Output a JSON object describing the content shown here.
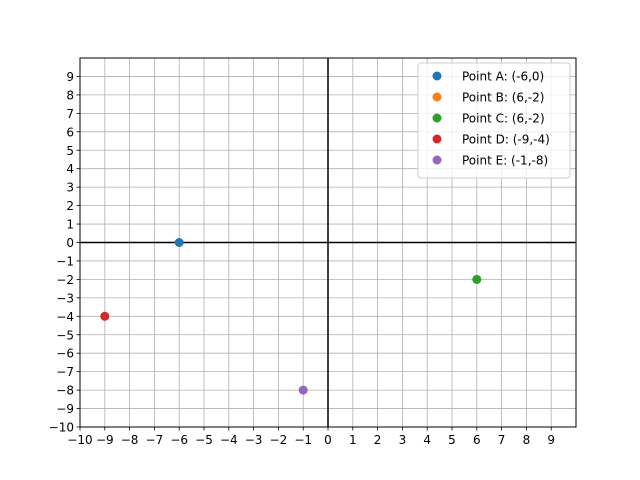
{
  "chart_data": {
    "type": "scatter",
    "title": "",
    "xlabel": "",
    "ylabel": "",
    "xlim": [
      -10,
      10
    ],
    "ylim": [
      -10,
      10
    ],
    "x_ticks": [
      -10,
      -9,
      -8,
      -7,
      -6,
      -5,
      -4,
      -3,
      -2,
      -1,
      0,
      1,
      2,
      3,
      4,
      5,
      6,
      7,
      8,
      9
    ],
    "y_ticks": [
      -10,
      -9,
      -8,
      -7,
      -6,
      -5,
      -4,
      -3,
      -2,
      -1,
      0,
      1,
      2,
      3,
      4,
      5,
      6,
      7,
      8,
      9
    ],
    "grid": true,
    "axes_lines_at_origin": true,
    "legend_position": "top-right",
    "series": [
      {
        "name": "Point A: (-6,0)",
        "color": "#1f77b4",
        "x": -6,
        "y": 0
      },
      {
        "name": "Point B: (6,-2)",
        "color": "#ff7f0e",
        "x": 6,
        "y": -2
      },
      {
        "name": "Point C: (6,-2)",
        "color": "#2ca02c",
        "x": 6,
        "y": -2
      },
      {
        "name": "Point D: (-9,-4)",
        "color": "#d62728",
        "x": -9,
        "y": -4
      },
      {
        "name": "Point E: (-1,-8)",
        "color": "#9467bd",
        "x": -1,
        "y": -8
      }
    ]
  }
}
